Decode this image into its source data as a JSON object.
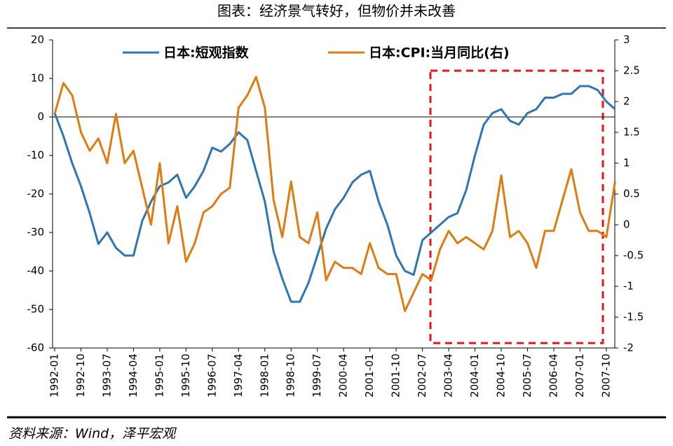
{
  "chart_data": {
    "type": "line",
    "title": "图表：经济景气转好，但物价并未改善",
    "source": "资料来源：Wind，泽平宏观",
    "categories": [
      "1992-01",
      null,
      null,
      "1992-10",
      null,
      null,
      "1993-07",
      null,
      null,
      "1994-04",
      null,
      null,
      "1995-01",
      null,
      null,
      "1995-10",
      null,
      null,
      "1996-07",
      null,
      null,
      "1997-04",
      null,
      null,
      "1998-01",
      null,
      null,
      "1998-10",
      null,
      null,
      "1999-07",
      null,
      null,
      "2000-04",
      null,
      null,
      "2001-01",
      null,
      null,
      "2001-10",
      null,
      null,
      "2002-07",
      null,
      null,
      "2003-04",
      null,
      null,
      "2004-01",
      null,
      null,
      "2004-10",
      null,
      null,
      "2005-07",
      null,
      null,
      "2006-04",
      null,
      null,
      "2007-01",
      null,
      null,
      "2007-10",
      null
    ],
    "series": [
      {
        "name": "日本:短观指数",
        "color": "#2e75b6",
        "values": [
          1,
          -5,
          -12,
          -18,
          -25,
          -33,
          -30,
          -34,
          -36,
          -36,
          -27,
          -22,
          -18,
          -17,
          -15,
          -21,
          -18,
          -14,
          -8,
          -9,
          -7,
          -4,
          -6,
          -14,
          -22,
          -35,
          -42,
          -48,
          -48,
          -43,
          -36,
          -29,
          -24,
          -21,
          -17,
          -15,
          -14,
          -22,
          -28,
          -36,
          -40,
          -41,
          -32,
          -30,
          -28,
          -26,
          -25,
          -19,
          -10,
          -2,
          1,
          2,
          -1,
          -2,
          1,
          2,
          5,
          5,
          6,
          6,
          8,
          8,
          7,
          4,
          2
        ]
      },
      {
        "name": "日本:CPI:当月同比(右)",
        "color": "#e07b10",
        "axis": "y2",
        "values": [
          1.8,
          2.3,
          2.1,
          1.5,
          1.2,
          1.4,
          1.0,
          1.8,
          1.0,
          1.2,
          0.6,
          0.0,
          1.0,
          -0.3,
          0.3,
          -0.6,
          -0.3,
          0.2,
          0.3,
          0.5,
          0.6,
          1.9,
          2.1,
          2.4,
          1.9,
          0.4,
          -0.2,
          0.7,
          -0.2,
          -0.3,
          0.2,
          -0.9,
          -0.6,
          -0.7,
          -0.7,
          -0.8,
          -0.3,
          -0.7,
          -0.8,
          -0.8,
          -1.4,
          -1.1,
          -0.8,
          -0.9,
          -0.4,
          -0.1,
          -0.3,
          -0.2,
          -0.3,
          -0.4,
          -0.1,
          0.8,
          -0.2,
          -0.1,
          -0.3,
          -0.7,
          -0.1,
          -0.1,
          0.4,
          0.9,
          0.2,
          -0.1,
          -0.1,
          -0.2,
          0.7
        ]
      }
    ],
    "ylim": [
      -60,
      20
    ],
    "yticks": [
      20,
      10,
      0,
      -10,
      -20,
      -30,
      -40,
      -50,
      -60
    ],
    "y2lim": [
      -2,
      3
    ],
    "y2ticks": [
      3,
      2.5,
      2,
      1.5,
      1,
      0.5,
      0,
      -0.5,
      -1,
      -1.5,
      -2
    ]
  }
}
